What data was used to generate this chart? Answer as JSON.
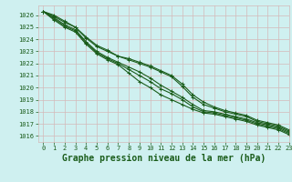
{
  "xlabel": "Graphe pression niveau de la mer (hPa)",
  "background_color": "#cff0f0",
  "grid_color": "#d4b8b8",
  "line_color": "#1a5c1a",
  "xlim": [
    -0.5,
    23
  ],
  "ylim": [
    1015.5,
    1026.8
  ],
  "yticks": [
    1016,
    1017,
    1018,
    1019,
    1020,
    1021,
    1022,
    1023,
    1024,
    1025,
    1026
  ],
  "xticks": [
    0,
    1,
    2,
    3,
    4,
    5,
    6,
    7,
    8,
    9,
    10,
    11,
    12,
    13,
    14,
    15,
    16,
    17,
    18,
    19,
    20,
    21,
    22,
    23
  ],
  "series": [
    [
      1026.3,
      1026.0,
      1025.5,
      1025.0,
      1024.1,
      1023.4,
      1023.0,
      1022.6,
      1022.4,
      1022.1,
      1021.8,
      1021.4,
      1021.0,
      1020.3,
      1019.4,
      1018.8,
      1018.4,
      1018.1,
      1017.9,
      1017.7,
      1017.3,
      1017.1,
      1016.9,
      1016.5
    ],
    [
      1026.3,
      1025.9,
      1025.4,
      1025.0,
      1024.2,
      1023.5,
      1023.1,
      1022.6,
      1022.3,
      1022.0,
      1021.7,
      1021.3,
      1020.9,
      1020.1,
      1019.2,
      1018.6,
      1018.3,
      1018.0,
      1017.8,
      1017.6,
      1017.2,
      1017.0,
      1016.8,
      1016.4
    ],
    [
      1026.3,
      1025.8,
      1025.2,
      1024.8,
      1023.8,
      1023.0,
      1022.5,
      1022.1,
      1021.7,
      1021.3,
      1020.8,
      1020.2,
      1019.7,
      1019.2,
      1018.6,
      1018.1,
      1018.0,
      1017.8,
      1017.6,
      1017.4,
      1017.1,
      1016.9,
      1016.7,
      1016.3
    ],
    [
      1026.3,
      1025.7,
      1025.1,
      1024.7,
      1023.7,
      1022.9,
      1022.4,
      1022.0,
      1021.5,
      1021.0,
      1020.5,
      1019.9,
      1019.5,
      1019.0,
      1018.4,
      1018.0,
      1017.9,
      1017.7,
      1017.5,
      1017.3,
      1017.0,
      1016.8,
      1016.6,
      1016.2
    ],
    [
      1026.3,
      1025.6,
      1025.0,
      1024.6,
      1023.6,
      1022.8,
      1022.3,
      1021.9,
      1021.2,
      1020.5,
      1020.0,
      1019.4,
      1019.0,
      1018.6,
      1018.2,
      1017.9,
      1017.8,
      1017.6,
      1017.4,
      1017.2,
      1016.9,
      1016.7,
      1016.5,
      1016.1
    ]
  ],
  "marker": "+",
  "markersize": 3,
  "linewidth": 0.8,
  "xlabel_fontsize": 7,
  "tick_fontsize": 5,
  "label_color": "#1a5c1a"
}
